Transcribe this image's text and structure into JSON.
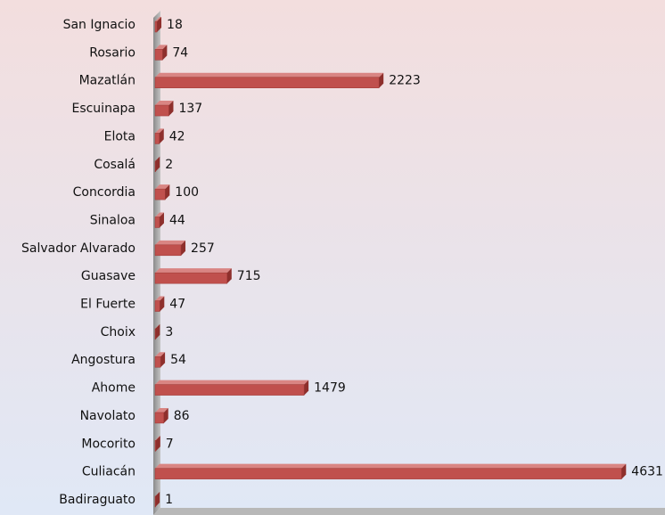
{
  "chart_data": {
    "type": "bar",
    "orientation": "horizontal",
    "categories": [
      "San Ignacio",
      "Rosario",
      "Mazatlán",
      "Escuinapa",
      "Elota",
      "Cosalá",
      "Concordia",
      "Sinaloa",
      "Salvador Alvarado",
      "Guasave",
      "El Fuerte",
      "Choix",
      "Angostura",
      "Ahome",
      "Navolato",
      "Mocorito",
      "Culiacán",
      "Badiraguato"
    ],
    "values": [
      18,
      74,
      2223,
      137,
      42,
      2,
      100,
      44,
      257,
      715,
      47,
      3,
      54,
      1479,
      86,
      7,
      4631,
      1
    ],
    "color": "#c0504d",
    "xlim": [
      0,
      5000
    ]
  }
}
